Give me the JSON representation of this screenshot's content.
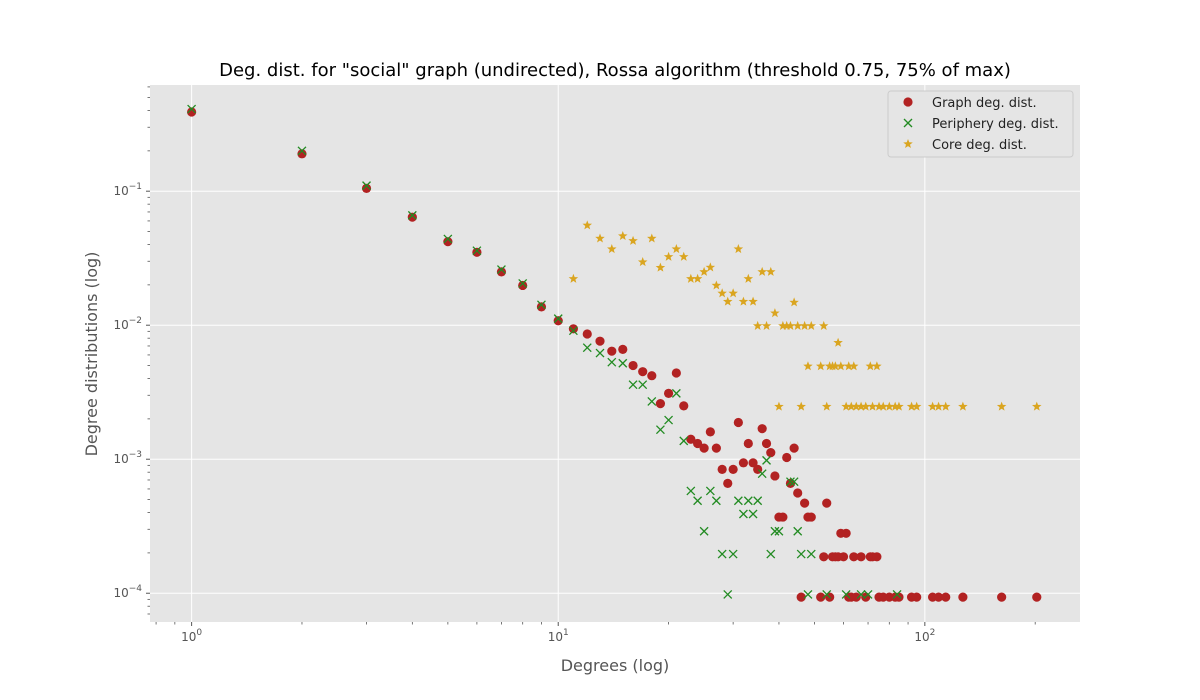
{
  "chart_data": {
    "type": "scatter",
    "title": "Deg. dist. for \"social\" graph (undirected), Rossa algorithm (threshold 0.75, 75% of max)",
    "xlabel": "Degrees (log)",
    "ylabel": "Degree distributions (log)",
    "xscale": "log",
    "yscale": "log",
    "xlim": [
      0.77,
      265
    ],
    "ylim": [
      6.1e-05,
      0.62
    ],
    "grid": true,
    "legend_position": "top-right",
    "x_ticks": [
      {
        "value": 1,
        "base": "10",
        "exp": "0"
      },
      {
        "value": 10,
        "base": "10",
        "exp": "1"
      },
      {
        "value": 100,
        "base": "10",
        "exp": "2"
      }
    ],
    "y_ticks": [
      {
        "value": 0.0001,
        "base": "10",
        "exp": "−4"
      },
      {
        "value": 0.001,
        "base": "10",
        "exp": "−3"
      },
      {
        "value": 0.01,
        "base": "10",
        "exp": "−2"
      },
      {
        "value": 0.1,
        "base": "10",
        "exp": "−1"
      }
    ],
    "series": [
      {
        "name": "Graph deg. dist.",
        "marker": "circle",
        "color": "#b22222",
        "points": [
          [
            1,
            0.39
          ],
          [
            2,
            0.19
          ],
          [
            3,
            0.105
          ],
          [
            4,
            0.064
          ],
          [
            5,
            0.042
          ],
          [
            6,
            0.035
          ],
          [
            7,
            0.025
          ],
          [
            8,
            0.0198
          ],
          [
            9,
            0.0137
          ],
          [
            10,
            0.0108
          ],
          [
            11,
            0.0094
          ],
          [
            12,
            0.0086
          ],
          [
            13,
            0.0076
          ],
          [
            14,
            0.0064
          ],
          [
            15,
            0.0066
          ],
          [
            16,
            0.005
          ],
          [
            17,
            0.0045
          ],
          [
            18,
            0.0042
          ],
          [
            19,
            0.0026
          ],
          [
            20,
            0.0031
          ],
          [
            21,
            0.0044
          ],
          [
            22,
            0.0025
          ],
          [
            23,
            0.00141
          ],
          [
            24,
            0.00131
          ],
          [
            25,
            0.00121
          ],
          [
            26,
            0.0016
          ],
          [
            27,
            0.00121
          ],
          [
            28,
            0.00084
          ],
          [
            29,
            0.00066
          ],
          [
            30,
            0.00084
          ],
          [
            31,
            0.00188
          ],
          [
            32,
            0.00094
          ],
          [
            33,
            0.00131
          ],
          [
            34,
            0.00094
          ],
          [
            35,
            0.00084
          ],
          [
            36,
            0.00169
          ],
          [
            37,
            0.00131
          ],
          [
            38,
            0.00112
          ],
          [
            39,
            0.00075
          ],
          [
            40,
            0.00037
          ],
          [
            41,
            0.00037
          ],
          [
            42,
            0.00103
          ],
          [
            43,
            0.00066
          ],
          [
            44,
            0.00121
          ],
          [
            45,
            0.00056
          ],
          [
            46,
            9.35e-05
          ],
          [
            47,
            0.00047
          ],
          [
            48,
            0.00037
          ],
          [
            49,
            0.00037
          ],
          [
            52,
            9.35e-05
          ],
          [
            53,
            0.000187
          ],
          [
            54,
            0.00047
          ],
          [
            55,
            9.35e-05
          ],
          [
            56,
            0.000187
          ],
          [
            57,
            0.000187
          ],
          [
            58,
            0.000187
          ],
          [
            59,
            0.00028
          ],
          [
            60,
            0.000187
          ],
          [
            61,
            0.00028
          ],
          [
            62,
            9.35e-05
          ],
          [
            63,
            9.35e-05
          ],
          [
            64,
            0.000187
          ],
          [
            65,
            9.35e-05
          ],
          [
            67,
            0.000187
          ],
          [
            69,
            9.35e-05
          ],
          [
            71,
            0.000187
          ],
          [
            72,
            0.000187
          ],
          [
            74,
            0.000187
          ],
          [
            75,
            9.35e-05
          ],
          [
            77,
            9.35e-05
          ],
          [
            80,
            9.35e-05
          ],
          [
            83,
            9.35e-05
          ],
          [
            85,
            9.35e-05
          ],
          [
            92,
            9.35e-05
          ],
          [
            95,
            9.35e-05
          ],
          [
            105,
            9.35e-05
          ],
          [
            109,
            9.35e-05
          ],
          [
            114,
            9.35e-05
          ],
          [
            127,
            9.35e-05
          ],
          [
            162,
            9.35e-05
          ],
          [
            202,
            9.35e-05
          ]
        ]
      },
      {
        "name": "Periphery deg. dist.",
        "marker": "x",
        "color": "#228b22",
        "points": [
          [
            1,
            0.41
          ],
          [
            2,
            0.2
          ],
          [
            3,
            0.11
          ],
          [
            4,
            0.066
          ],
          [
            5,
            0.044
          ],
          [
            6,
            0.036
          ],
          [
            7,
            0.026
          ],
          [
            8,
            0.0205
          ],
          [
            9,
            0.0142
          ],
          [
            10,
            0.0112
          ],
          [
            11,
            0.0091
          ],
          [
            12,
            0.0068
          ],
          [
            13,
            0.0062
          ],
          [
            14,
            0.0053
          ],
          [
            15,
            0.0052
          ],
          [
            16,
            0.0036
          ],
          [
            17,
            0.0036
          ],
          [
            18,
            0.0027
          ],
          [
            19,
            0.00166
          ],
          [
            20,
            0.00196
          ],
          [
            21,
            0.0031
          ],
          [
            22,
            0.00137
          ],
          [
            23,
            0.00058
          ],
          [
            24,
            0.00049
          ],
          [
            25,
            0.00029
          ],
          [
            26,
            0.00058
          ],
          [
            27,
            0.00049
          ],
          [
            28,
            0.000196
          ],
          [
            29,
            9.8e-05
          ],
          [
            30,
            0.000196
          ],
          [
            31,
            0.00049
          ],
          [
            32,
            0.00039
          ],
          [
            33,
            0.00049
          ],
          [
            34,
            0.00039
          ],
          [
            35,
            0.00049
          ],
          [
            36,
            0.00078
          ],
          [
            37,
            0.00098
          ],
          [
            38,
            0.000196
          ],
          [
            39,
            0.00029
          ],
          [
            40,
            0.00029
          ],
          [
            43,
            0.00068
          ],
          [
            44,
            0.00068
          ],
          [
            45,
            0.00029
          ],
          [
            46,
            0.000196
          ],
          [
            48,
            9.8e-05
          ],
          [
            49,
            0.000196
          ],
          [
            54,
            9.8e-05
          ],
          [
            61,
            9.8e-05
          ],
          [
            67,
            9.8e-05
          ],
          [
            70,
            9.8e-05
          ],
          [
            84,
            9.8e-05
          ]
        ]
      },
      {
        "name": "Core deg. dist.",
        "marker": "star",
        "color": "#daa520",
        "points": [
          [
            11,
            0.0222
          ],
          [
            12,
            0.0556
          ],
          [
            13,
            0.0444
          ],
          [
            14,
            0.037
          ],
          [
            15,
            0.0463
          ],
          [
            16,
            0.0426
          ],
          [
            17,
            0.0296
          ],
          [
            18,
            0.0444
          ],
          [
            19,
            0.0269
          ],
          [
            20,
            0.0324
          ],
          [
            21,
            0.037
          ],
          [
            22,
            0.0324
          ],
          [
            23,
            0.0222
          ],
          [
            24,
            0.0222
          ],
          [
            25,
            0.025
          ],
          [
            26,
            0.027
          ],
          [
            27,
            0.0198
          ],
          [
            28,
            0.0173
          ],
          [
            29,
            0.015
          ],
          [
            30,
            0.0173
          ],
          [
            31,
            0.037
          ],
          [
            32,
            0.015
          ],
          [
            33,
            0.0222
          ],
          [
            34,
            0.015
          ],
          [
            35,
            0.00988
          ],
          [
            36,
            0.025
          ],
          [
            37,
            0.00988
          ],
          [
            38,
            0.025
          ],
          [
            39,
            0.0123
          ],
          [
            40,
            0.00247
          ],
          [
            41,
            0.00988
          ],
          [
            42,
            0.00988
          ],
          [
            43,
            0.00988
          ],
          [
            44,
            0.0148
          ],
          [
            45,
            0.00988
          ],
          [
            46,
            0.00247
          ],
          [
            47,
            0.00988
          ],
          [
            48,
            0.00494
          ],
          [
            49,
            0.00988
          ],
          [
            52,
            0.00494
          ],
          [
            53,
            0.00988
          ],
          [
            54,
            0.00247
          ],
          [
            55,
            0.00494
          ],
          [
            56,
            0.00494
          ],
          [
            57,
            0.00494
          ],
          [
            58,
            0.0074
          ],
          [
            59,
            0.00494
          ],
          [
            61,
            0.00247
          ],
          [
            62,
            0.00494
          ],
          [
            63,
            0.00247
          ],
          [
            64,
            0.00494
          ],
          [
            65,
            0.00247
          ],
          [
            67,
            0.00247
          ],
          [
            69,
            0.00247
          ],
          [
            71,
            0.00494
          ],
          [
            72,
            0.00247
          ],
          [
            74,
            0.00494
          ],
          [
            75,
            0.00247
          ],
          [
            77,
            0.00247
          ],
          [
            80,
            0.00247
          ],
          [
            83,
            0.00247
          ],
          [
            85,
            0.00247
          ],
          [
            92,
            0.00247
          ],
          [
            95,
            0.00247
          ],
          [
            105,
            0.00247
          ],
          [
            109,
            0.00247
          ],
          [
            114,
            0.00247
          ],
          [
            127,
            0.00247
          ],
          [
            162,
            0.00247
          ],
          [
            202,
            0.00247
          ]
        ]
      }
    ]
  }
}
